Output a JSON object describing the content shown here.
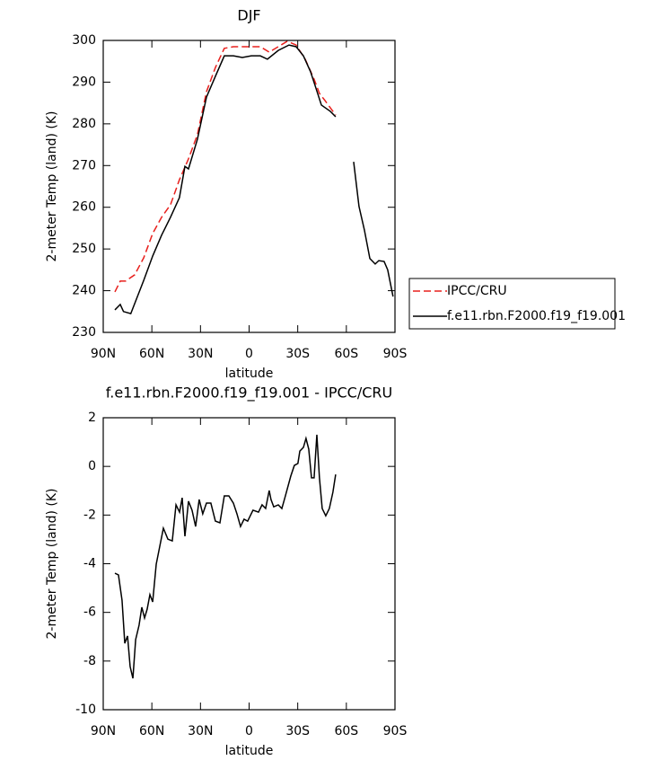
{
  "chart_data": [
    {
      "type": "line",
      "title": "DJF",
      "xlabel": "latitude",
      "ylabel": "2-meter Temp (land) (K)",
      "xlim": [
        90,
        -90
      ],
      "xticks": [
        {
          "value": 90,
          "label": "90N"
        },
        {
          "value": 60,
          "label": "60N"
        },
        {
          "value": 30,
          "label": "30N"
        },
        0,
        {
          "value": -30,
          "label": "30S"
        },
        {
          "value": -60,
          "label": "60S"
        },
        {
          "value": -90,
          "label": "90S"
        }
      ],
      "ylim": [
        230,
        300
      ],
      "yticks": [
        230,
        240,
        250,
        260,
        270,
        280,
        290,
        300
      ],
      "legend": "right",
      "series": [
        {
          "name": "IPCC/CRU",
          "color": "#e8201d",
          "dash": "dashed",
          "x": [
            82.8,
            79.5,
            76.2,
            70.6,
            65,
            59.5,
            54,
            48.5,
            43,
            37.4,
            31.9,
            26.3,
            20.8,
            15.3,
            9.7,
            1.4,
            -6.9,
            -12.4,
            -18,
            -23.5,
            -29,
            -34.6,
            -40.1,
            -43.4,
            -46.8,
            -53.4
          ],
          "values": [
            239.7,
            242.3,
            242.3,
            243.8,
            247.9,
            253.7,
            257.6,
            260.6,
            266.6,
            271.6,
            277.4,
            287.7,
            293.5,
            298.1,
            298.5,
            298.5,
            298.5,
            297.2,
            298.5,
            299.8,
            298.9,
            295.5,
            290.7,
            287.3,
            285.6,
            282.1
          ]
        },
        {
          "name": "f.e11.rbn.F2000.f19_f19.001",
          "color": "#000000",
          "dash": "solid",
          "x": [
            82.8,
            79.5,
            77.5,
            73,
            69.5,
            65,
            59.5,
            54,
            48.5,
            43,
            39.6,
            37.4,
            31.9,
            26.3,
            20.8,
            15.3,
            9.7,
            4.2,
            -1.4,
            -6.9,
            -11.3,
            -18,
            -24.6,
            -29,
            -33.5,
            -37.9,
            -41.2,
            -44.6,
            -50.1,
            -53.4,
            -59,
            -64.5,
            -67.8,
            -71.1,
            -74.5,
            -77.8,
            -80,
            -83.3,
            -85.5,
            -88.8
          ],
          "values": [
            235.4,
            236.7,
            235,
            234.5,
            238,
            242.5,
            248.3,
            253.3,
            257.6,
            262.3,
            269.8,
            269.2,
            276.3,
            286.4,
            291.4,
            296.3,
            296.3,
            295.9,
            296.3,
            296.3,
            295.5,
            297.6,
            298.9,
            298.5,
            296.3,
            292.5,
            288.6,
            284.5,
            283,
            281.7,
            null,
            270.9,
            260.2,
            254.6,
            247.7,
            246.4,
            247.2,
            247,
            245,
            238.6
          ]
        }
      ]
    },
    {
      "type": "line",
      "title": "f.e11.rbn.F2000.f19_f19.001 - IPCC/CRU",
      "xlabel": "latitude",
      "ylabel": "2-meter Temp (land) (K)",
      "xlim": [
        90,
        -90
      ],
      "xticks": [
        {
          "value": 90,
          "label": "90N"
        },
        {
          "value": 60,
          "label": "60N"
        },
        {
          "value": 30,
          "label": "30N"
        },
        0,
        {
          "value": -30,
          "label": "30S"
        },
        {
          "value": -60,
          "label": "60S"
        },
        {
          "value": -90,
          "label": "90S"
        }
      ],
      "ylim": [
        -10,
        2
      ],
      "yticks": [
        -10,
        -8,
        -6,
        -4,
        -2,
        0,
        2
      ],
      "series": [
        {
          "color": "#000000",
          "dash": "solid",
          "x": [
            82.8,
            80.6,
            78.4,
            76.7,
            75,
            73.4,
            71.7,
            70,
            67.9,
            66.2,
            64.5,
            62.9,
            61.2,
            59.5,
            57.3,
            55.1,
            52.9,
            50.1,
            47.4,
            45.1,
            42.9,
            41.3,
            39.6,
            37.4,
            35.2,
            33,
            30.8,
            28.6,
            26.3,
            23.6,
            20.8,
            18,
            15.3,
            12.5,
            9.7,
            7.5,
            5.3,
            3.1,
            0.9,
            -2.4,
            -5.8,
            -8,
            -10.2,
            -12.4,
            -13.5,
            -15.2,
            -18,
            -20.2,
            -22.4,
            -25.7,
            -27.9,
            -30.1,
            -31.3,
            -33.5,
            -35.1,
            -36.8,
            -38.5,
            -40.1,
            -41.8,
            -43.4,
            -45.1,
            -47.3,
            -49.5,
            -51.7,
            -53.4
          ],
          "values": [
            -4.39,
            -4.46,
            -5.5,
            -7.27,
            -6.97,
            -8.23,
            -8.71,
            -7.12,
            -6.53,
            -5.79,
            -6.23,
            -5.87,
            -5.27,
            -5.57,
            -4.02,
            -3.28,
            -2.54,
            -2.99,
            -3.06,
            -1.58,
            -1.88,
            -1.29,
            -2.87,
            -1.43,
            -1.8,
            -2.47,
            -1.36,
            -1.95,
            -1.51,
            -1.51,
            -2.25,
            -2.32,
            -1.21,
            -1.21,
            -1.51,
            -1.95,
            -2.47,
            -2.17,
            -2.25,
            -1.8,
            -1.88,
            -1.58,
            -1.73,
            -0.99,
            -1.36,
            -1.66,
            -1.58,
            -1.73,
            -1.21,
            -0.4,
            0.04,
            0.12,
            0.63,
            0.78,
            1.15,
            0.71,
            -0.47,
            -0.47,
            1.3,
            -0.47,
            -1.73,
            -2.03,
            -1.73,
            -1.06,
            -0.33
          ]
        }
      ]
    }
  ]
}
